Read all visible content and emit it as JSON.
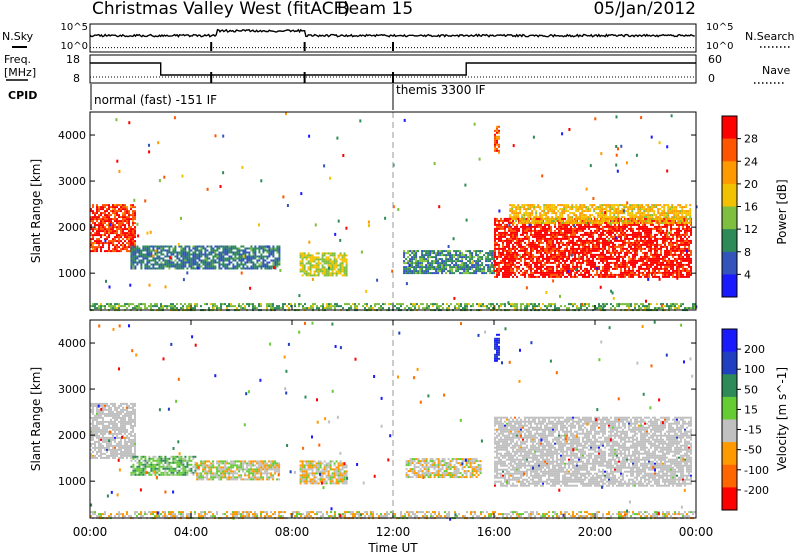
{
  "header": {
    "station": "Christmas Valley West (fitACF)",
    "beam": "Beam 15",
    "date": "05/Jan/2012"
  },
  "panels": {
    "nsky": {
      "label": "N.Sky",
      "ticks": [
        "10^5",
        "10^0"
      ],
      "right_label": "N.Search",
      "right_ticks": [
        "10^5",
        "10^0"
      ]
    },
    "freq": {
      "label": "Freq.",
      "units": "[MHz]",
      "ticks": [
        "18",
        "8"
      ],
      "right_label": "Nave",
      "right_ticks": [
        "60",
        "0"
      ]
    },
    "cpid": {
      "label": "CPID",
      "modes": [
        "normal (fast) -151 IF",
        "themis 3300 IF"
      ]
    },
    "power": {
      "ylabel": "Slant Range [km]",
      "yticks": [
        "1000",
        "2000",
        "3000",
        "4000"
      ],
      "cbar_label": "Power [dB]",
      "cbar_ticks": [
        "4",
        "8",
        "12",
        "16",
        "20",
        "24",
        "28"
      ]
    },
    "velocity": {
      "ylabel": "Slant Range [km]",
      "yticks": [
        "1000",
        "2000",
        "3000",
        "4000"
      ],
      "cbar_label": "Velocity [m s^-1]",
      "cbar_ticks": [
        "200",
        "100",
        "50",
        "15",
        "-15",
        "-50",
        "-100",
        "-200"
      ]
    }
  },
  "xaxis": {
    "label": "Time UT",
    "ticks": [
      "00:00",
      "04:00",
      "08:00",
      "12:00",
      "16:00",
      "20:00",
      "00:00"
    ]
  },
  "colors": {
    "power_scale": [
      "#1a1aff",
      "#3355bb",
      "#2e8b57",
      "#7fbf3f",
      "#f2c200",
      "#ff9900",
      "#ff5500",
      "#ff0000"
    ],
    "velocity_scale": [
      "#1a1aff",
      "#2040c0",
      "#2e8b57",
      "#66cc33",
      "#c0c0c0",
      "#ff9900",
      "#ff6600",
      "#ff0000"
    ],
    "ground_scatter": "#c0c0c0"
  },
  "chart_data": [
    {
      "type": "line",
      "title": "N.Sky / N.Search",
      "x_units": "hours UT",
      "xlim": [
        0,
        24
      ],
      "series": [
        {
          "name": "N.Sky",
          "x": [
            0,
            4.8,
            5.0,
            8.5,
            12.0,
            16.0,
            20.0,
            24.0
          ],
          "values": [
            3,
            3,
            4,
            3,
            3,
            3,
            3,
            3
          ]
        },
        {
          "name": "N.Search",
          "x": [
            0,
            24
          ],
          "values": [
            0.5,
            0.5
          ]
        }
      ]
    },
    {
      "type": "line",
      "title": "Freq. / Nave",
      "x_units": "hours UT",
      "xlim": [
        0,
        24
      ],
      "series": [
        {
          "name": "Freq. [MHz]",
          "x": [
            0,
            2.8,
            2.8,
            14.9,
            14.9,
            24
          ],
          "values": [
            15.5,
            15.5,
            10.5,
            10.5,
            15.5,
            15.5
          ]
        },
        {
          "name": "Nave",
          "x": [
            0,
            24
          ],
          "values": [
            10,
            10
          ]
        }
      ]
    },
    {
      "type": "heatmap",
      "variable": "Power [dB]",
      "x_units": "hours UT",
      "xlim": [
        0,
        24
      ],
      "ylim": [
        200,
        4500
      ],
      "zlim": [
        0,
        30
      ],
      "features": [
        {
          "t": [
            0,
            1.8
          ],
          "range": [
            1500,
            2500
          ],
          "level": 26,
          "note": "echo cluster"
        },
        {
          "t": [
            1.6,
            7.5
          ],
          "range": [
            1100,
            1600
          ],
          "level": 8
        },
        {
          "t": [
            8.3,
            10.2
          ],
          "range": [
            950,
            1450
          ],
          "level": 15
        },
        {
          "t": [
            12.4,
            16.0
          ],
          "range": [
            1000,
            1500
          ],
          "level": 9
        },
        {
          "t": [
            16.0,
            16.2
          ],
          "range": [
            3600,
            4200
          ],
          "level": 24
        },
        {
          "t": [
            16.0,
            23.8
          ],
          "range": [
            900,
            2200
          ],
          "level": 28
        },
        {
          "t": [
            16.6,
            23.8
          ],
          "range": [
            2100,
            2500
          ],
          "level": 18
        },
        {
          "t": [
            0,
            24
          ],
          "range": [
            200,
            350
          ],
          "level": 12,
          "note": "near-range band"
        }
      ]
    },
    {
      "type": "heatmap",
      "variable": "Velocity [m s^-1]",
      "x_units": "hours UT",
      "xlim": [
        0,
        24
      ],
      "ylim": [
        200,
        4500
      ],
      "zlim": [
        -250,
        250
      ],
      "features": [
        {
          "t": [
            0,
            1.8
          ],
          "range": [
            1500,
            2700
          ],
          "level": 0,
          "ground_scatter": true
        },
        {
          "t": [
            1.6,
            4.2
          ],
          "range": [
            1150,
            1550
          ],
          "level": 40
        },
        {
          "t": [
            4.2,
            7.5
          ],
          "range": [
            1050,
            1450
          ],
          "level": -30
        },
        {
          "t": [
            8.3,
            10.2
          ],
          "range": [
            950,
            1450
          ],
          "level": -40
        },
        {
          "t": [
            12.5,
            15.5
          ],
          "range": [
            1100,
            1500
          ],
          "level": -40
        },
        {
          "t": [
            16.0,
            16.2
          ],
          "range": [
            3600,
            4200
          ],
          "level": 200
        },
        {
          "t": [
            16.0,
            23.8
          ],
          "range": [
            900,
            2400
          ],
          "level": 0,
          "ground_scatter": true
        },
        {
          "t": [
            0,
            24
          ],
          "range": [
            200,
            350
          ],
          "level": -40,
          "note": "near-range band"
        }
      ]
    }
  ]
}
